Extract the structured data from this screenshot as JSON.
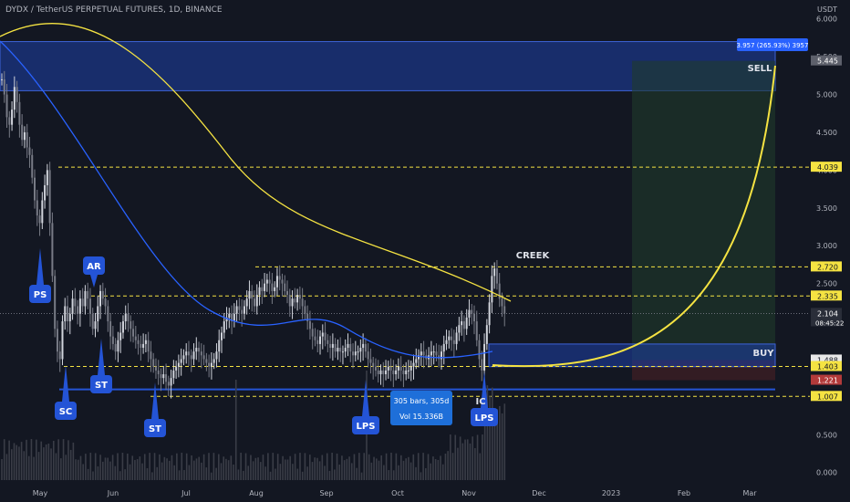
{
  "header": {
    "ticker": "DYDX / TetherUS PERPETUAL FUTURES, 1D, BINANCE",
    "axis_unit": "USDT"
  },
  "chart_data": {
    "type": "candlestick",
    "y_ticks": [
      0.0,
      0.5,
      1.0,
      1.5,
      2.0,
      2.5,
      3.0,
      3.5,
      4.0,
      4.5,
      5.0,
      5.5,
      6.0
    ],
    "y_tick_labels": [
      "0.000",
      "0.500",
      "1.000",
      "1.500",
      "2.000",
      "2.500",
      "3.000",
      "3.500",
      "4.000",
      "4.500",
      "5.000",
      "5.500",
      "6.000"
    ],
    "ylim": [
      -0.1,
      6.25
    ],
    "x_labels": [
      "May",
      "Jun",
      "Jul",
      "Aug",
      "Sep",
      "Oct",
      "Nov",
      "Dec",
      "2023",
      "Feb",
      "Mar"
    ],
    "price_labels": [
      {
        "value": 5.445,
        "label": "5.445",
        "color": "#5d606b"
      },
      {
        "value": 4.039,
        "label": "4.039",
        "color": "#f5e342"
      },
      {
        "value": 2.72,
        "label": "2.720",
        "color": "#f5e342"
      },
      {
        "value": 2.335,
        "label": "2.335",
        "color": "#f5e342"
      },
      {
        "value": 2.104,
        "label": "2.104",
        "sublabel": "08:45:22",
        "color": "#2a2e39"
      },
      {
        "value": 1.488,
        "label": "1.488",
        "color": "#e8e8e8"
      },
      {
        "value": 1.403,
        "label": "1.403",
        "color": "#f5e342"
      },
      {
        "value": 1.221,
        "label": "1.221",
        "color": "#b33a3a"
      },
      {
        "value": 1.007,
        "label": "1.007",
        "color": "#f5e342"
      }
    ],
    "horizontal_levels": [
      4.039,
      2.72,
      2.335,
      1.403,
      1.007
    ],
    "sell_zone": {
      "from": 5.05,
      "to": 5.7,
      "label": "SELL"
    },
    "buy_zone": {
      "from": 1.4,
      "to": 1.7,
      "label": "BUY"
    },
    "position_box": {
      "entry": 1.488,
      "target": 5.445,
      "stop": 1.221
    },
    "range_label": "3.957 (265.93%) 3957",
    "measure_label_1": "305 bars, 305d",
    "measure_label_2": "Vol 15.336B",
    "annotations": [
      {
        "text": "PS",
        "date": 5,
        "price": 3.1
      },
      {
        "text": "SC",
        "date": 22,
        "price": 0.6
      },
      {
        "text": "AR",
        "date": 42,
        "price": 2.62
      },
      {
        "text": "ST",
        "date": 47,
        "price": 1.17
      },
      {
        "text": "ST",
        "date": 87,
        "price": 0.5
      },
      {
        "text": "LPS",
        "date": 173,
        "price": 0.52
      },
      {
        "text": "LPS",
        "date": 229,
        "price": 0.52
      },
      {
        "text": "IC",
        "date": 226,
        "price": 0.85
      },
      {
        "text": "CREEK",
        "date": 250,
        "price": 2.93
      }
    ],
    "closes": [
      5.2,
      5.0,
      4.7,
      4.6,
      4.8,
      5.1,
      4.9,
      4.6,
      4.4,
      4.5,
      4.3,
      4.2,
      3.9,
      3.6,
      3.4,
      3.3,
      3.6,
      3.8,
      4.0,
      3.3,
      2.6,
      1.9,
      1.6,
      1.5,
      2.0,
      2.2,
      2.0,
      2.1,
      2.3,
      2.2,
      2.1,
      2.3,
      2.2,
      2.4,
      2.3,
      2.1,
      1.9,
      2.0,
      2.2,
      2.4,
      2.3,
      2.2,
      2.0,
      1.8,
      1.7,
      1.6,
      1.75,
      1.85,
      2.0,
      2.1,
      2.0,
      1.9,
      1.8,
      1.75,
      1.7,
      1.65,
      1.7,
      1.75,
      1.6,
      1.5,
      1.4,
      1.35,
      1.3,
      1.25,
      1.3,
      1.2,
      1.15,
      1.25,
      1.35,
      1.4,
      1.45,
      1.5,
      1.55,
      1.6,
      1.55,
      1.5,
      1.6,
      1.65,
      1.6,
      1.55,
      1.5,
      1.45,
      1.4,
      1.45,
      1.5,
      1.6,
      1.75,
      1.85,
      2.0,
      2.05,
      2.1,
      2.0,
      2.1,
      2.2,
      2.15,
      2.1,
      2.2,
      2.3,
      2.4,
      2.3,
      2.2,
      2.35,
      2.45,
      2.4,
      2.5,
      2.55,
      2.5,
      2.4,
      2.45,
      2.6,
      2.55,
      2.5,
      2.4,
      2.35,
      2.2,
      2.3,
      2.25,
      2.35,
      2.3,
      2.2,
      2.1,
      2.0,
      1.9,
      1.8,
      1.75,
      1.7,
      1.8,
      1.85,
      1.75,
      1.7,
      1.65,
      1.7,
      1.6,
      1.65,
      1.6,
      1.6,
      1.65,
      1.7,
      1.6,
      1.55,
      1.6,
      1.6,
      1.65,
      1.7,
      1.6,
      1.5,
      1.45,
      1.4,
      1.35,
      1.3,
      1.35,
      1.3,
      1.35,
      1.4,
      1.35,
      1.3,
      1.35,
      1.4,
      1.35,
      1.3,
      1.35,
      1.35,
      1.4,
      1.45,
      1.5,
      1.55,
      1.6,
      1.55,
      1.5,
      1.55,
      1.6,
      1.6,
      1.55,
      1.5,
      1.6,
      1.7,
      1.75,
      1.8,
      1.75,
      1.7,
      1.85,
      1.95,
      2.0,
      1.9,
      2.05,
      2.15,
      2.1,
      2.0,
      1.75,
      1.5,
      1.35,
      1.7,
      1.95,
      2.25,
      2.6,
      2.7,
      2.5,
      2.3,
      2.2,
      2.104
    ]
  },
  "colors": {
    "background": "#131722",
    "up": "#d1d4dc",
    "down": "#787b86",
    "ma_yellow": "#f5e342",
    "ma_blue": "#2962ff",
    "zone_blue": "#1e3fa8",
    "label_blue": "#2454d6",
    "text_secondary": "#b2b5be"
  }
}
